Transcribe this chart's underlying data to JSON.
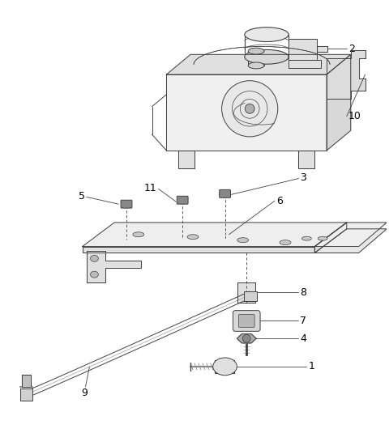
{
  "bg_color": "#ffffff",
  "lc": "#404040",
  "fig_width": 4.8,
  "fig_height": 5.35,
  "dpi": 100
}
